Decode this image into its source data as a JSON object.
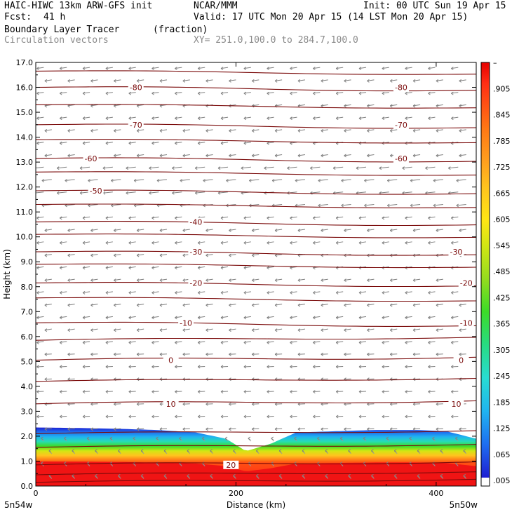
{
  "header": {
    "model": "HAIC-HIWC 13km ARW-GFS init",
    "org": "NCAR/MMM",
    "init": "Init: 00 UTC Sun 19 Apr 15",
    "fcst_label": "Fcst:",
    "fcst_value": "41 h",
    "valid": "Valid: 17 UTC Mon 20 Apr 15 (14 LST Mon 20 Apr 15)",
    "field": "Boundary Layer Tracer",
    "field_units": "(fraction)",
    "overlay": "Circulation vectors",
    "xy_range": "XY= 251.0,100.0 to 284.7,100.0"
  },
  "chart_data": {
    "type": "heatmap",
    "xlabel": "Distance (km)",
    "ylabel": "Height (km)",
    "xlim": [
      0,
      440
    ],
    "ylim": [
      0,
      17
    ],
    "x_ticks": [
      "0",
      "200",
      "400"
    ],
    "x_tick_values": [
      0,
      200,
      400
    ],
    "y_ticks": [
      "0.0",
      "1.0",
      "2.0",
      "3.0",
      "4.0",
      "5.0",
      "6.0",
      "7.0",
      "8.0",
      "9.0",
      "10.0",
      "11.0",
      "12.0",
      "13.0",
      "14.0",
      "15.0",
      "16.0",
      "17.0"
    ],
    "y_tick_values": [
      0,
      1,
      2,
      3,
      4,
      5,
      6,
      7,
      8,
      9,
      10,
      11,
      12,
      13,
      14,
      15,
      16,
      17
    ],
    "x_endpoint_labels": [
      "5n54w",
      "5n50w"
    ],
    "colorbar": {
      "labels": [
        ".005",
        ".065",
        ".125",
        ".185",
        ".245",
        ".305",
        ".365",
        ".425",
        ".485",
        ".545",
        ".605",
        ".665",
        ".725",
        ".785",
        ".845",
        ".905",
        "–"
      ],
      "colors": [
        "#ffffff",
        "#1e1ed2",
        "#1e6ef0",
        "#20b4f0",
        "#28dcd2",
        "#28dc82",
        "#3cdc28",
        "#96dc1e",
        "#d2e614",
        "#ffe614",
        "#ffc31e",
        "#ffa01e",
        "#ff7814",
        "#ff5014",
        "#ff2d14",
        "#f01414",
        "#e60000"
      ]
    },
    "tracer_top_km": {
      "x": [
        0,
        40,
        80,
        120,
        160,
        190,
        210,
        235,
        260,
        300,
        340,
        380,
        410,
        440
      ],
      "y": [
        2.35,
        2.33,
        2.3,
        2.25,
        2.15,
        1.9,
        1.4,
        1.7,
        2.15,
        2.2,
        2.25,
        2.25,
        2.2,
        1.9
      ]
    },
    "temperature_contours": {
      "units": "deg C",
      "labeled": [
        {
          "value": "-80",
          "height_km": 16.0,
          "label_x_km": [
            100,
            365
          ]
        },
        {
          "value": "-70",
          "height_km": 14.5,
          "label_x_km": [
            100,
            365
          ]
        },
        {
          "value": "-60",
          "height_km": 13.15,
          "label_x_km": [
            55,
            365
          ]
        },
        {
          "value": "-50",
          "height_km": 11.85,
          "label_x_km": [
            60
          ]
        },
        {
          "value": "-40",
          "height_km": 10.6,
          "label_x_km": [
            160
          ]
        },
        {
          "value": "-30",
          "height_km": 9.4,
          "label_x_km": [
            160,
            420
          ]
        },
        {
          "value": "-20",
          "height_km": 8.15,
          "label_x_km": [
            160,
            430
          ]
        },
        {
          "value": "-10",
          "height_km": 6.55,
          "label_x_km": [
            150,
            430
          ]
        },
        {
          "value": "0",
          "height_km": 5.05,
          "label_x_km": [
            135,
            425
          ]
        },
        {
          "value": "10",
          "height_km": 3.3,
          "label_x_km": [
            135,
            420
          ]
        },
        {
          "value": "20",
          "height_km": 0.85,
          "label_x_km": [
            195
          ]
        }
      ],
      "unlabeled_heights_km": [
        16.65,
        15.3,
        13.9,
        12.6,
        11.3,
        10.1,
        8.9,
        7.55,
        5.85,
        4.2,
        2.1,
        1.55,
        0.45,
        0.15
      ]
    }
  }
}
